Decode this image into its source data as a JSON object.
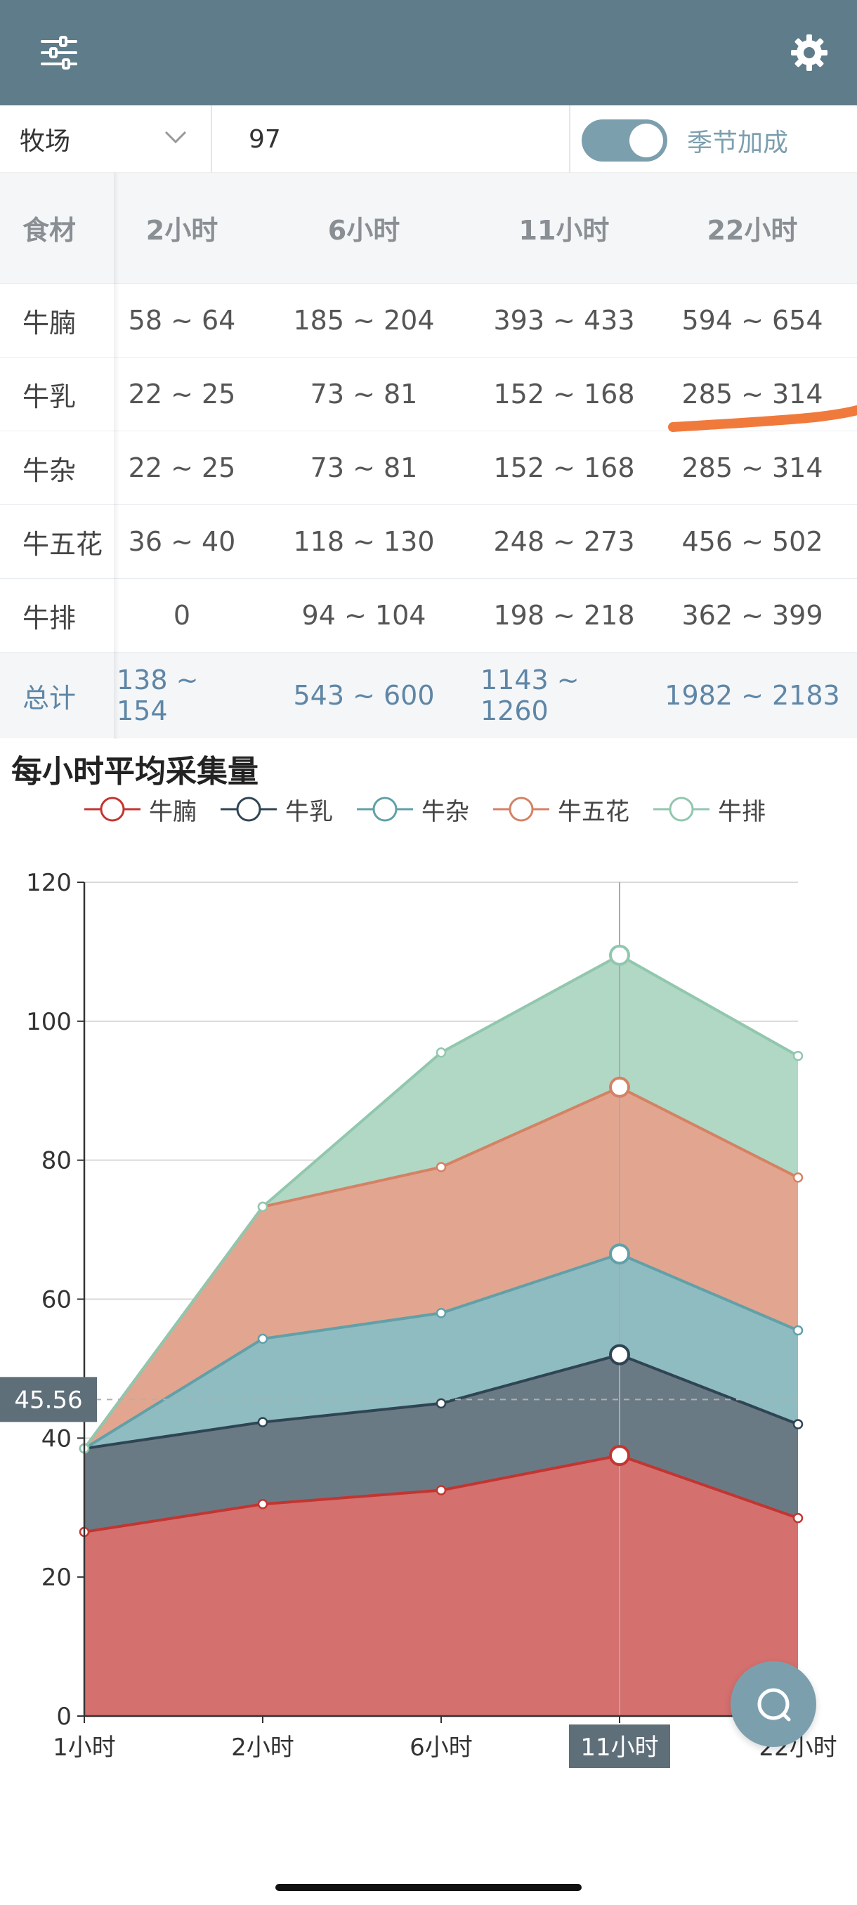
{
  "controls": {
    "select_value": "牧场",
    "input_value": "97",
    "toggle_on": true,
    "toggle_label": "季节加成"
  },
  "table": {
    "headers": [
      "食材",
      "2小时",
      "6小时",
      "11小时",
      "22小时"
    ],
    "rows": [
      {
        "name": "牛腩",
        "values": [
          "58 ~ 64",
          "185 ~ 204",
          "393 ~ 433",
          "594 ~ 654"
        ]
      },
      {
        "name": "牛乳",
        "values": [
          "22 ~ 25",
          "73 ~ 81",
          "152 ~ 168",
          "285 ~ 314"
        ]
      },
      {
        "name": "牛杂",
        "values": [
          "22 ~ 25",
          "73 ~ 81",
          "152 ~ 168",
          "285 ~ 314"
        ]
      },
      {
        "name": "牛五花",
        "values": [
          "36 ~ 40",
          "118 ~ 130",
          "248 ~ 273",
          "456 ~ 502"
        ]
      },
      {
        "name": "牛排",
        "values": [
          "0",
          "94 ~ 104",
          "198 ~ 218",
          "362 ~ 399"
        ]
      }
    ],
    "total": {
      "name": "总计",
      "values": [
        "138 ~ 154",
        "543 ~ 600",
        "1143 ~ 1260",
        "1982 ~ 2183"
      ]
    }
  },
  "chart_data": {
    "type": "area",
    "stacked": true,
    "title": "每小时平均采集量",
    "categories": [
      "1小时",
      "2小时",
      "6小时",
      "11小时",
      "22小时"
    ],
    "ylim": [
      0,
      120
    ],
    "yticks": [
      0,
      20,
      40,
      60,
      80,
      100,
      120
    ],
    "grid": true,
    "legend_position": "top",
    "series": [
      {
        "name": "牛腩",
        "color": "#c23531",
        "fill": "#d4706e",
        "values": [
          26.5,
          30.5,
          32.5,
          37.5,
          28.5
        ]
      },
      {
        "name": "牛乳",
        "color": "#2f4554",
        "fill": "#6a7a84",
        "values": [
          12,
          11.8,
          12.5,
          14.5,
          13.5
        ]
      },
      {
        "name": "牛杂",
        "color": "#61a0a8",
        "fill": "#8fbcc1",
        "values": [
          0,
          12,
          13,
          14.5,
          13.5
        ]
      },
      {
        "name": "牛五花",
        "color": "#d48265",
        "fill": "#e2a690",
        "values": [
          0,
          19,
          21,
          24,
          22
        ]
      },
      {
        "name": "牛排",
        "color": "#91c7ae",
        "fill": "#b1d8c4",
        "values": [
          0,
          0,
          16.5,
          19,
          17.5
        ]
      }
    ],
    "tooltip_category": "11小时",
    "axis_pointer_value": "45.56"
  }
}
